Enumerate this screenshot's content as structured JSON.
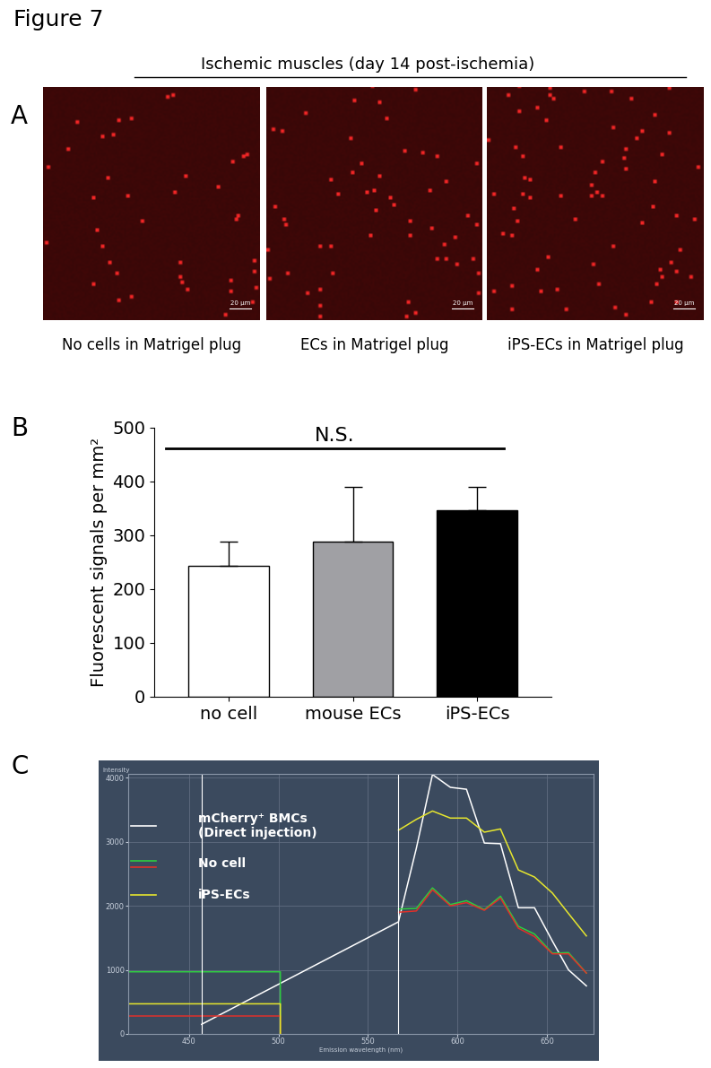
{
  "figure_title": "Figure 7",
  "panel_a": {
    "panel": "A",
    "title": "Ischemic muscles (day 14 post-ischemia)",
    "images": [
      {
        "caption": "No cells in Matrigel plug",
        "scale_bar": "20 µm"
      },
      {
        "caption": "ECs in Matrigel plug",
        "scale_bar": "20 µm"
      },
      {
        "caption": "iPS-ECs in Matrigel plug",
        "scale_bar": "20 µm"
      }
    ]
  },
  "chart_data": [
    {
      "panel": "B",
      "type": "bar",
      "y_label": "Fluorescent signals per mm²",
      "categories": [
        "no cell",
        "mouse ECs",
        "iPS-ECs"
      ],
      "values": [
        243,
        288,
        346
      ],
      "error_up": [
        46,
        102,
        44
      ],
      "colors": [
        "#ffffff",
        "#a0a0a4",
        "#000000"
      ],
      "ylim": [
        0,
        500
      ],
      "yticks": [
        0,
        100,
        200,
        300,
        400,
        500
      ],
      "annotations": [
        "N.S."
      ]
    },
    {
      "panel": "C",
      "type": "line",
      "x_label": "Emission wavelength (nm)",
      "y_label": "Intensity",
      "xlim": [
        416,
        676
      ],
      "xticks": [
        450,
        500,
        550,
        600,
        650
      ],
      "ylim": [
        0,
        4060
      ],
      "yticks": [
        0,
        1000,
        2000,
        3000,
        4000
      ],
      "grid": true,
      "cursor_lines": [
        457,
        567
      ],
      "series": [
        {
          "name": "mCherry⁺ BMCs\n(Direct injection)",
          "color": "#ffffff",
          "x": [
            457,
            567,
            577,
            586,
            596,
            605,
            615,
            624,
            634,
            643,
            653,
            662,
            672
          ],
          "values": [
            150,
            1750,
            2900,
            4050,
            3850,
            3820,
            2980,
            2970,
            1970,
            1970,
            1450,
            1000,
            750
          ]
        },
        {
          "name": "No cell",
          "color": "#2ecc40",
          "x": [
            416,
            501,
            501,
            567,
            567,
            577,
            586,
            596,
            605,
            615,
            624,
            634,
            643,
            653,
            662,
            672
          ],
          "values": [
            970,
            970,
            0,
            null,
            1950,
            1960,
            2280,
            2020,
            2080,
            1940,
            2150,
            1680,
            1560,
            1260,
            1270,
            950
          ]
        },
        {
          "name": "No cell",
          "color": "#e0302a",
          "x": [
            416,
            501,
            501,
            567,
            567,
            577,
            586,
            596,
            605,
            615,
            624,
            634,
            643,
            653,
            662,
            672
          ],
          "values": [
            280,
            280,
            0,
            null,
            1900,
            1920,
            2250,
            2000,
            2050,
            1930,
            2120,
            1650,
            1520,
            1250,
            1250,
            950
          ]
        },
        {
          "name": "iPS-ECs",
          "color": "#e6e62e",
          "x": [
            416,
            501,
            501,
            567,
            567,
            577,
            586,
            596,
            605,
            615,
            624,
            634,
            643,
            653,
            662,
            672
          ],
          "values": [
            470,
            470,
            0,
            null,
            3180,
            3350,
            3480,
            3370,
            3370,
            3150,
            3200,
            2560,
            2450,
            2200,
            1880,
            1530
          ]
        }
      ]
    }
  ]
}
